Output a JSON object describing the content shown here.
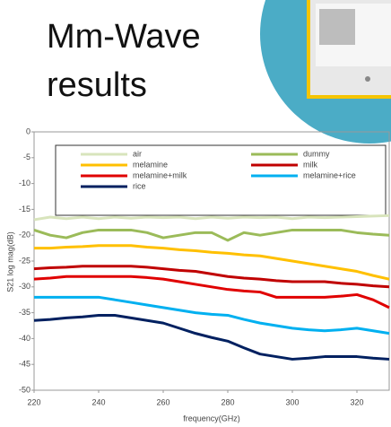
{
  "chart_data": {
    "type": "line",
    "title": "Mm-Wave results",
    "x_label": "frequency(GHz)",
    "y_label": "S21 log mag(dB)",
    "x": [
      220,
      225,
      230,
      235,
      240,
      245,
      250,
      255,
      260,
      265,
      270,
      275,
      280,
      285,
      290,
      295,
      300,
      305,
      310,
      315,
      320,
      325,
      330
    ],
    "xlim": [
      220,
      330
    ],
    "xticks": [
      220,
      240,
      260,
      280,
      300,
      320
    ],
    "ylim": [
      -50,
      0
    ],
    "yticks": [
      0,
      -5,
      -10,
      -15,
      -20,
      -25,
      -30,
      -35,
      -40,
      -45,
      -50
    ],
    "legend": "top",
    "series": [
      {
        "name": "air",
        "color": "#d8e4bc",
        "values": [
          -17,
          -16.5,
          -16.8,
          -16.5,
          -16.8,
          -16.5,
          -16.7,
          -16.5,
          -16.6,
          -16.5,
          -16.8,
          -16.5,
          -16.7,
          -16.5,
          -16.6,
          -16.5,
          -16.8,
          -16.5,
          -16.6,
          -16.5,
          -16.4,
          -16.3,
          -16.2
        ]
      },
      {
        "name": "dummy",
        "color": "#9bbb59",
        "values": [
          -19,
          -20,
          -20.5,
          -19.5,
          -19,
          -19,
          -19,
          -19.5,
          -20.5,
          -20,
          -19.5,
          -19.5,
          -21,
          -19.5,
          -20,
          -19.5,
          -19,
          -19,
          -19,
          -19,
          -19.5,
          -19.8,
          -20
        ]
      },
      {
        "name": "melamine",
        "color": "#ffc000",
        "values": [
          -22.5,
          -22.5,
          -22.3,
          -22.2,
          -22,
          -22,
          -22,
          -22.3,
          -22.5,
          -22.8,
          -23,
          -23.3,
          -23.5,
          -23.8,
          -24,
          -24.5,
          -25,
          -25.5,
          -26,
          -26.5,
          -27,
          -27.8,
          -28.5
        ]
      },
      {
        "name": "milk",
        "color": "#c00000",
        "values": [
          -26.5,
          -26.3,
          -26.2,
          -26,
          -26,
          -26,
          -26,
          -26.2,
          -26.5,
          -26.8,
          -27,
          -27.5,
          -28,
          -28.3,
          -28.5,
          -28.8,
          -29,
          -29,
          -29,
          -29.3,
          -29.5,
          -29.8,
          -30
        ]
      },
      {
        "name": "melamine+milk",
        "color": "#e00000",
        "values": [
          -28.5,
          -28.3,
          -28,
          -28,
          -28,
          -28,
          -28,
          -28.2,
          -28.5,
          -29,
          -29.5,
          -30,
          -30.5,
          -30.8,
          -31,
          -32,
          -32,
          -32,
          -32,
          -31.8,
          -31.5,
          -32.5,
          -34
        ]
      },
      {
        "name": "melamine+rice",
        "color": "#00b0f0",
        "values": [
          -32,
          -32,
          -32,
          -32,
          -32,
          -32.5,
          -33,
          -33.5,
          -34,
          -34.5,
          -35,
          -35.3,
          -35.5,
          -36.3,
          -37,
          -37.5,
          -38,
          -38.3,
          -38.5,
          -38.3,
          -38,
          -38.5,
          -39
        ]
      },
      {
        "name": "rice",
        "color": "#002060",
        "values": [
          -36.5,
          -36.3,
          -36,
          -35.8,
          -35.5,
          -35.5,
          -36,
          -36.5,
          -37,
          -38,
          -39,
          -39.8,
          -40.5,
          -41.8,
          -43,
          -43.5,
          -44,
          -43.8,
          -43.5,
          -43.5,
          -43.5,
          -43.8,
          -44
        ]
      }
    ]
  }
}
